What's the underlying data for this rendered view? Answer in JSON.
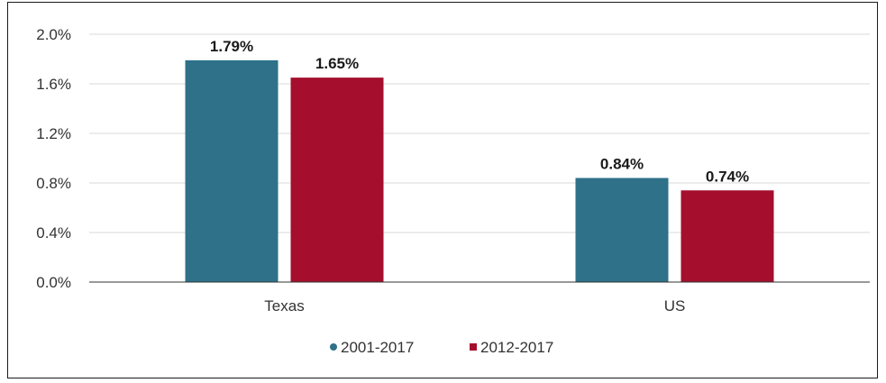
{
  "chart_data": {
    "type": "bar",
    "categories": [
      "Texas",
      "US"
    ],
    "series": [
      {
        "name": "2001-2017",
        "values": [
          1.79,
          0.84
        ],
        "labels": [
          "1.79%",
          "0.84%"
        ],
        "color": "#2e7188"
      },
      {
        "name": "2012-2017",
        "values": [
          1.65,
          0.74
        ],
        "labels": [
          "1.65%",
          "0.74%"
        ],
        "color": "#a50f2d"
      }
    ],
    "yticks": [
      "0.0%",
      "0.4%",
      "0.8%",
      "1.2%",
      "1.6%",
      "2.0%"
    ],
    "ytick_values": [
      0,
      0.4,
      0.8,
      1.2,
      1.6,
      2.0
    ],
    "ylim": [
      0,
      2.0
    ],
    "grid": true,
    "legend": "bottom-center",
    "title": "",
    "xlabel": "",
    "ylabel": ""
  }
}
